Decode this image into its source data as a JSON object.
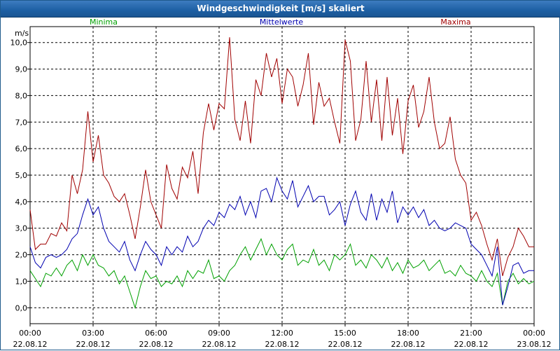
{
  "chart_data": {
    "type": "line",
    "title": "Windgeschwindigkeit [m/s] skaliert",
    "ylabel": "m/s",
    "ylim": [
      -0.6,
      10.6
    ],
    "yticks": [
      "0,0",
      "1,0",
      "2,0",
      "3,0",
      "4,0",
      "5,0",
      "6,0",
      "7,0",
      "8,0",
      "9,0",
      "10,0"
    ],
    "ytick_values": [
      0,
      1,
      2,
      3,
      4,
      5,
      6,
      7,
      8,
      9,
      10
    ],
    "x_range_hours": [
      0,
      24
    ],
    "x_ticks": [
      {
        "time": "00:00",
        "date": "22.08.12"
      },
      {
        "time": "03:00",
        "date": "22.08.12"
      },
      {
        "time": "06:00",
        "date": "22.08.12"
      },
      {
        "time": "09:00",
        "date": "22.08.12"
      },
      {
        "time": "12:00",
        "date": "22.08.12"
      },
      {
        "time": "15:00",
        "date": "22.08.12"
      },
      {
        "time": "18:00",
        "date": "22.08.12"
      },
      {
        "time": "21:00",
        "date": "22.08.12"
      },
      {
        "time": "00:00",
        "date": "23.08.12"
      }
    ],
    "grid": true,
    "series": [
      {
        "name": "Minima",
        "color": "#00a000",
        "points": [
          [
            0,
            1.4
          ],
          [
            0.25,
            1.1
          ],
          [
            0.5,
            0.8
          ],
          [
            0.75,
            1.3
          ],
          [
            1,
            1.2
          ],
          [
            1.25,
            1.5
          ],
          [
            1.5,
            1.2
          ],
          [
            1.75,
            1.6
          ],
          [
            2,
            1.8
          ],
          [
            2.25,
            1.4
          ],
          [
            2.5,
            2.0
          ],
          [
            2.75,
            1.6
          ],
          [
            3,
            2.0
          ],
          [
            3.25,
            1.6
          ],
          [
            3.5,
            1.5
          ],
          [
            3.75,
            1.2
          ],
          [
            4,
            1.4
          ],
          [
            4.25,
            0.9
          ],
          [
            4.5,
            1.2
          ],
          [
            4.75,
            0.6
          ],
          [
            5,
            0.0
          ],
          [
            5.25,
            0.8
          ],
          [
            5.5,
            1.4
          ],
          [
            5.75,
            1.1
          ],
          [
            6,
            1.2
          ],
          [
            6.25,
            0.8
          ],
          [
            6.5,
            1.0
          ],
          [
            6.75,
            0.9
          ],
          [
            7,
            1.2
          ],
          [
            7.25,
            0.8
          ],
          [
            7.5,
            1.4
          ],
          [
            7.75,
            1.1
          ],
          [
            8,
            1.4
          ],
          [
            8.25,
            1.3
          ],
          [
            8.5,
            1.8
          ],
          [
            8.75,
            1.1
          ],
          [
            9,
            1.2
          ],
          [
            9.25,
            1.0
          ],
          [
            9.5,
            1.4
          ],
          [
            9.75,
            1.6
          ],
          [
            10,
            2.0
          ],
          [
            10.25,
            2.3
          ],
          [
            10.5,
            1.8
          ],
          [
            10.75,
            2.2
          ],
          [
            11,
            2.6
          ],
          [
            11.25,
            2.0
          ],
          [
            11.5,
            2.4
          ],
          [
            11.75,
            2.0
          ],
          [
            12,
            1.8
          ],
          [
            12.25,
            2.2
          ],
          [
            12.5,
            2.4
          ],
          [
            12.75,
            1.6
          ],
          [
            13,
            1.8
          ],
          [
            13.25,
            1.7
          ],
          [
            13.5,
            2.2
          ],
          [
            13.75,
            1.6
          ],
          [
            14,
            1.8
          ],
          [
            14.25,
            1.4
          ],
          [
            14.5,
            2.0
          ],
          [
            14.75,
            1.8
          ],
          [
            15,
            2.0
          ],
          [
            15.25,
            2.4
          ],
          [
            15.5,
            1.6
          ],
          [
            15.75,
            1.8
          ],
          [
            16,
            1.5
          ],
          [
            16.25,
            2.0
          ],
          [
            16.5,
            1.8
          ],
          [
            16.75,
            1.5
          ],
          [
            17,
            1.9
          ],
          [
            17.25,
            1.4
          ],
          [
            17.5,
            1.7
          ],
          [
            17.75,
            1.3
          ],
          [
            18,
            1.8
          ],
          [
            18.25,
            1.5
          ],
          [
            18.5,
            1.6
          ],
          [
            18.75,
            1.8
          ],
          [
            19,
            1.4
          ],
          [
            19.25,
            1.6
          ],
          [
            19.5,
            1.8
          ],
          [
            19.75,
            1.3
          ],
          [
            20,
            1.4
          ],
          [
            20.25,
            1.2
          ],
          [
            20.5,
            1.6
          ],
          [
            20.75,
            1.3
          ],
          [
            21,
            1.2
          ],
          [
            21.25,
            1.0
          ],
          [
            21.5,
            1.4
          ],
          [
            21.75,
            1.0
          ],
          [
            22,
            0.8
          ],
          [
            22.25,
            1.3
          ],
          [
            22.5,
            0.1
          ],
          [
            22.75,
            1.0
          ],
          [
            23,
            1.3
          ],
          [
            23.25,
            0.9
          ],
          [
            23.5,
            1.1
          ],
          [
            23.75,
            0.9
          ],
          [
            24,
            1.0
          ]
        ]
      },
      {
        "name": "Mittelwerte",
        "color": "#0000b0",
        "points": [
          [
            0,
            2.3
          ],
          [
            0.25,
            1.7
          ],
          [
            0.5,
            1.5
          ],
          [
            0.75,
            1.9
          ],
          [
            1,
            2.0
          ],
          [
            1.25,
            1.9
          ],
          [
            1.5,
            2.0
          ],
          [
            1.75,
            2.2
          ],
          [
            2,
            2.6
          ],
          [
            2.25,
            2.8
          ],
          [
            2.5,
            3.5
          ],
          [
            2.75,
            4.1
          ],
          [
            3,
            3.5
          ],
          [
            3.25,
            3.8
          ],
          [
            3.5,
            3.0
          ],
          [
            3.75,
            2.5
          ],
          [
            4,
            2.3
          ],
          [
            4.25,
            2.1
          ],
          [
            4.5,
            2.5
          ],
          [
            4.75,
            1.8
          ],
          [
            5,
            1.4
          ],
          [
            5.25,
            2.0
          ],
          [
            5.5,
            2.5
          ],
          [
            5.75,
            2.2
          ],
          [
            6,
            2.0
          ],
          [
            6.25,
            1.6
          ],
          [
            6.5,
            2.3
          ],
          [
            6.75,
            2.0
          ],
          [
            7,
            2.3
          ],
          [
            7.25,
            2.1
          ],
          [
            7.5,
            2.7
          ],
          [
            7.75,
            2.3
          ],
          [
            8,
            2.5
          ],
          [
            8.25,
            3.0
          ],
          [
            8.5,
            3.3
          ],
          [
            8.75,
            3.1
          ],
          [
            9,
            3.6
          ],
          [
            9.25,
            3.4
          ],
          [
            9.5,
            3.9
          ],
          [
            9.75,
            3.7
          ],
          [
            10,
            4.2
          ],
          [
            10.25,
            3.5
          ],
          [
            10.5,
            4.0
          ],
          [
            10.75,
            3.4
          ],
          [
            11,
            4.4
          ],
          [
            11.25,
            4.5
          ],
          [
            11.5,
            4.0
          ],
          [
            11.75,
            4.9
          ],
          [
            12,
            4.4
          ],
          [
            12.25,
            4.1
          ],
          [
            12.5,
            4.8
          ],
          [
            12.75,
            3.8
          ],
          [
            13,
            4.2
          ],
          [
            13.25,
            4.6
          ],
          [
            13.5,
            4.0
          ],
          [
            13.75,
            4.2
          ],
          [
            14,
            4.2
          ],
          [
            14.25,
            3.5
          ],
          [
            14.5,
            3.7
          ],
          [
            14.75,
            4.0
          ],
          [
            15,
            3.1
          ],
          [
            15.25,
            3.9
          ],
          [
            15.5,
            4.4
          ],
          [
            15.75,
            3.6
          ],
          [
            16,
            3.3
          ],
          [
            16.25,
            4.3
          ],
          [
            16.5,
            3.3
          ],
          [
            16.75,
            4.1
          ],
          [
            17,
            3.6
          ],
          [
            17.25,
            4.4
          ],
          [
            17.5,
            3.2
          ],
          [
            17.75,
            3.8
          ],
          [
            18,
            3.5
          ],
          [
            18.25,
            3.8
          ],
          [
            18.5,
            3.4
          ],
          [
            18.75,
            3.7
          ],
          [
            19,
            3.1
          ],
          [
            19.25,
            3.3
          ],
          [
            19.5,
            3.0
          ],
          [
            19.75,
            2.9
          ],
          [
            20,
            3.0
          ],
          [
            20.25,
            3.2
          ],
          [
            20.5,
            3.1
          ],
          [
            20.75,
            3.0
          ],
          [
            21,
            2.4
          ],
          [
            21.25,
            2.2
          ],
          [
            21.5,
            2.0
          ],
          [
            21.75,
            1.6
          ],
          [
            22,
            1.2
          ],
          [
            22.25,
            2.3
          ],
          [
            22.5,
            0.1
          ],
          [
            22.75,
            0.8
          ],
          [
            23,
            1.6
          ],
          [
            23.25,
            1.7
          ],
          [
            23.5,
            1.3
          ],
          [
            23.75,
            1.4
          ],
          [
            24,
            1.4
          ]
        ]
      },
      {
        "name": "Maxima",
        "color": "#a00000",
        "points": [
          [
            0,
            3.7
          ],
          [
            0.25,
            2.2
          ],
          [
            0.5,
            2.4
          ],
          [
            0.75,
            2.4
          ],
          [
            1,
            2.8
          ],
          [
            1.25,
            2.7
          ],
          [
            1.5,
            3.2
          ],
          [
            1.75,
            2.9
          ],
          [
            2,
            5.0
          ],
          [
            2.25,
            4.3
          ],
          [
            2.5,
            5.2
          ],
          [
            2.75,
            7.4
          ],
          [
            3,
            5.5
          ],
          [
            3.25,
            6.5
          ],
          [
            3.5,
            5.0
          ],
          [
            3.75,
            4.7
          ],
          [
            4,
            4.2
          ],
          [
            4.25,
            4.0
          ],
          [
            4.5,
            4.3
          ],
          [
            4.75,
            3.5
          ],
          [
            5,
            2.6
          ],
          [
            5.25,
            3.8
          ],
          [
            5.5,
            5.2
          ],
          [
            5.75,
            4.0
          ],
          [
            6,
            3.5
          ],
          [
            6.25,
            3.0
          ],
          [
            6.5,
            5.4
          ],
          [
            6.75,
            4.5
          ],
          [
            7,
            4.1
          ],
          [
            7.25,
            5.3
          ],
          [
            7.5,
            4.9
          ],
          [
            7.75,
            5.9
          ],
          [
            8,
            4.3
          ],
          [
            8.25,
            6.6
          ],
          [
            8.5,
            7.7
          ],
          [
            8.75,
            6.7
          ],
          [
            9,
            7.7
          ],
          [
            9.25,
            7.5
          ],
          [
            9.5,
            10.2
          ],
          [
            9.75,
            7.1
          ],
          [
            10,
            6.3
          ],
          [
            10.25,
            7.8
          ],
          [
            10.5,
            6.2
          ],
          [
            10.75,
            8.6
          ],
          [
            11,
            8.0
          ],
          [
            11.25,
            9.6
          ],
          [
            11.5,
            8.7
          ],
          [
            11.75,
            9.4
          ],
          [
            12,
            7.7
          ],
          [
            12.25,
            9.0
          ],
          [
            12.5,
            8.7
          ],
          [
            12.75,
            7.6
          ],
          [
            13,
            8.4
          ],
          [
            13.25,
            9.6
          ],
          [
            13.5,
            6.9
          ],
          [
            13.75,
            8.5
          ],
          [
            14,
            7.6
          ],
          [
            14.25,
            7.9
          ],
          [
            14.5,
            7.0
          ],
          [
            14.75,
            6.2
          ],
          [
            15,
            10.1
          ],
          [
            15.25,
            9.3
          ],
          [
            15.5,
            6.3
          ],
          [
            15.75,
            7.1
          ],
          [
            16,
            9.3
          ],
          [
            16.25,
            7.0
          ],
          [
            16.5,
            8.6
          ],
          [
            16.75,
            6.3
          ],
          [
            17,
            8.7
          ],
          [
            17.25,
            6.5
          ],
          [
            17.5,
            7.9
          ],
          [
            17.75,
            5.8
          ],
          [
            18,
            7.8
          ],
          [
            18.25,
            8.4
          ],
          [
            18.5,
            6.8
          ],
          [
            18.75,
            7.4
          ],
          [
            19,
            8.7
          ],
          [
            19.25,
            7.0
          ],
          [
            19.5,
            6.0
          ],
          [
            19.75,
            6.2
          ],
          [
            20,
            7.2
          ],
          [
            20.25,
            5.6
          ],
          [
            20.5,
            5.0
          ],
          [
            20.75,
            4.7
          ],
          [
            21,
            3.3
          ],
          [
            21.25,
            3.6
          ],
          [
            21.5,
            3.1
          ],
          [
            21.75,
            2.4
          ],
          [
            22,
            1.8
          ],
          [
            22.25,
            2.6
          ],
          [
            22.5,
            1.2
          ],
          [
            22.75,
            1.9
          ],
          [
            23,
            2.3
          ],
          [
            23.25,
            3.0
          ],
          [
            23.5,
            2.7
          ],
          [
            23.75,
            2.3
          ],
          [
            24,
            2.3
          ]
        ]
      }
    ]
  }
}
